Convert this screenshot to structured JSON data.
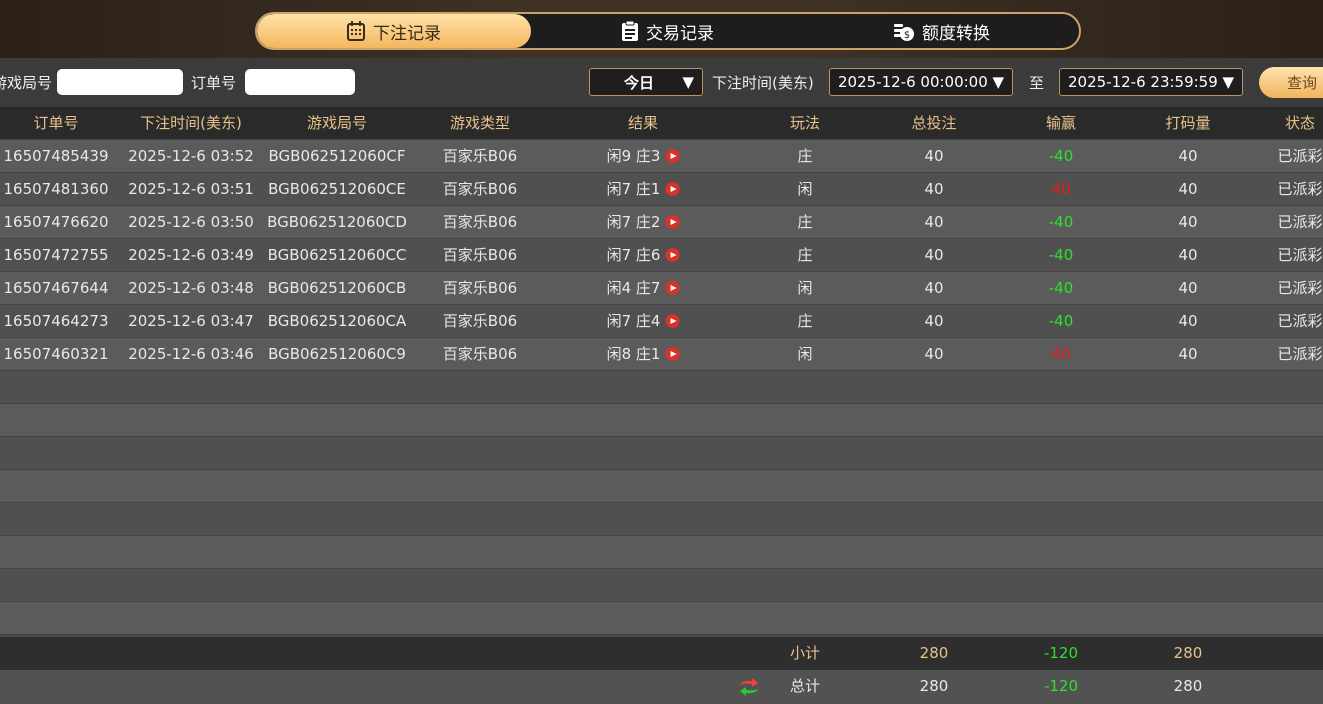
{
  "tabs": [
    {
      "label": "下注记录",
      "icon": "calendar-icon",
      "active": true
    },
    {
      "label": "交易记录",
      "icon": "clipboard-icon"
    },
    {
      "label": "额度转换",
      "icon": "coins-icon"
    }
  ],
  "filters": {
    "round_label": "游戏局号",
    "round_value": "",
    "order_label": "订单号",
    "order_value": "",
    "period": "今日",
    "time_label": "下注时间(美东)",
    "start": "2025-12-6 00:00:00",
    "to": "至",
    "end": "2025-12-6 23:59:59",
    "query": "查询"
  },
  "columns": [
    "订单号",
    "下注时间(美东)",
    "游戏局号",
    "游戏类型",
    "结果",
    "玩法",
    "总投注",
    "输赢",
    "打码量",
    "状态"
  ],
  "rows": [
    [
      "16507485439",
      "2025-12-6 03:52",
      "BGB062512060CF",
      "百家乐B06",
      "闲9 庄3",
      "庄",
      "40",
      "-40",
      "40",
      "已派彩"
    ],
    [
      "16507481360",
      "2025-12-6 03:51",
      "BGB062512060CE",
      "百家乐B06",
      "闲7 庄1",
      "闲",
      "40",
      "40",
      "40",
      "已派彩"
    ],
    [
      "16507476620",
      "2025-12-6 03:50",
      "BGB062512060CD",
      "百家乐B06",
      "闲7 庄2",
      "庄",
      "40",
      "-40",
      "40",
      "已派彩"
    ],
    [
      "16507472755",
      "2025-12-6 03:49",
      "BGB062512060CC",
      "百家乐B06",
      "闲7 庄6",
      "庄",
      "40",
      "-40",
      "40",
      "已派彩"
    ],
    [
      "16507467644",
      "2025-12-6 03:48",
      "BGB062512060CB",
      "百家乐B06",
      "闲4 庄7",
      "闲",
      "40",
      "-40",
      "40",
      "已派彩"
    ],
    [
      "16507464273",
      "2025-12-6 03:47",
      "BGB062512060CA",
      "百家乐B06",
      "闲7 庄4",
      "庄",
      "40",
      "-40",
      "40",
      "已派彩"
    ],
    [
      "16507460321",
      "2025-12-6 03:46",
      "BGB062512060C9",
      "百家乐B06",
      "闲8 庄1",
      "闲",
      "40",
      "40",
      "40",
      "已派彩"
    ]
  ],
  "subtotal": {
    "label": "小计",
    "bet": "280",
    "winloss": "-120",
    "turnover": "280"
  },
  "total": {
    "label": "总计",
    "bet": "280",
    "winloss": "-120",
    "turnover": "280"
  },
  "colors": {
    "accent": "#f3b75e",
    "win": "#2ee02e",
    "lose": "#e02020"
  }
}
